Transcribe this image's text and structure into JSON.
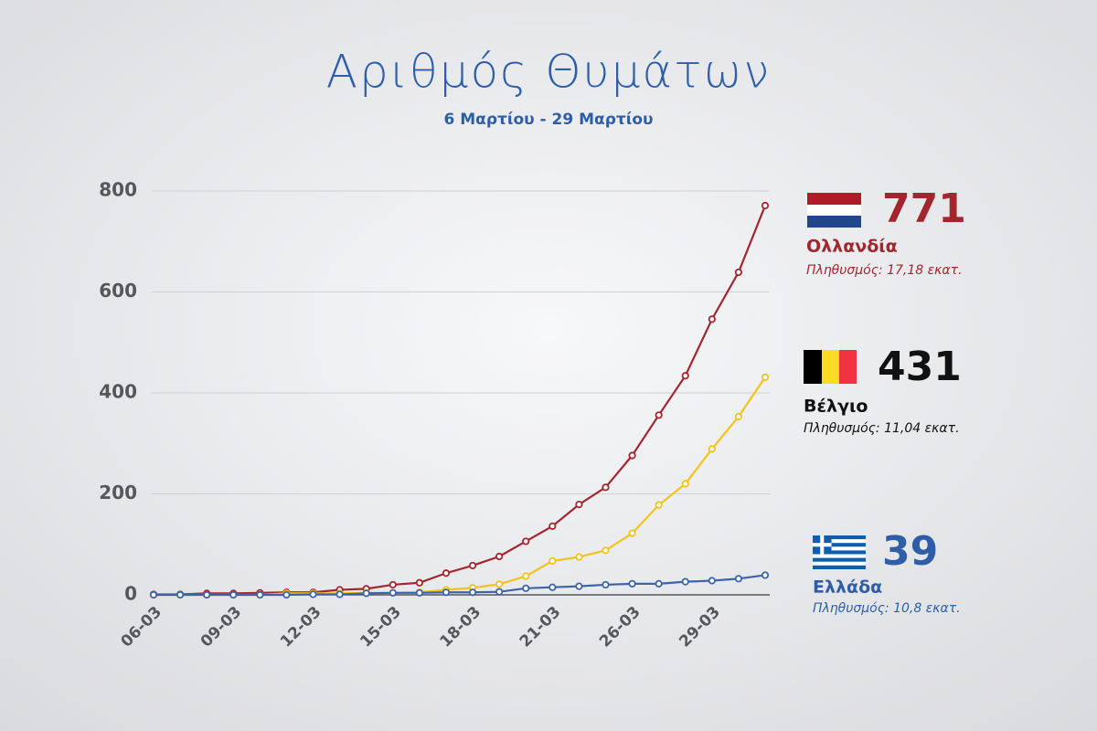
{
  "chart_data": {
    "type": "line",
    "title": "Αριθμός Θυμάτων",
    "subtitle": "6 Μαρτίου - 29 Μαρτίου",
    "categories": [
      "06-03",
      null,
      null,
      "09-03",
      null,
      null,
      "12-03",
      null,
      null,
      "15-03",
      null,
      null,
      "18-03",
      null,
      null,
      "21-03",
      null,
      null,
      "26-03",
      null,
      null,
      "29-03",
      null,
      null
    ],
    "series": [
      {
        "name": "Ολλανδία",
        "color": "#a3262e",
        "values": [
          1,
          1,
          3,
          3,
          4,
          5,
          5,
          10,
          12,
          20,
          24,
          43,
          58,
          76,
          106,
          136,
          179,
          213,
          276,
          356,
          434,
          546,
          639,
          771
        ]
      },
      {
        "name": "Βέλγιο",
        "color": "#f2c31c",
        "values": [
          0,
          0,
          0,
          0,
          0,
          3,
          3,
          3,
          4,
          4,
          5,
          10,
          14,
          21,
          37,
          67,
          75,
          88,
          122,
          178,
          220,
          289,
          353,
          431
        ]
      },
      {
        "name": "Ελλάδα",
        "color": "#3d63a8",
        "values": [
          0,
          0,
          0,
          0,
          0,
          0,
          1,
          1,
          3,
          4,
          4,
          5,
          5,
          6,
          13,
          15,
          17,
          20,
          22,
          22,
          26,
          28,
          32,
          39
        ]
      }
    ],
    "annotations": [
      "Πληθυσμός: 17,18 εκατ.",
      "Πληθυσμός: 11,04 εκατ.",
      "Πληθυσμός: 10,8 εκατ."
    ],
    "ylim": [
      0,
      800
    ],
    "yticks": [
      0,
      200,
      400,
      600,
      800
    ],
    "grid": true
  }
}
